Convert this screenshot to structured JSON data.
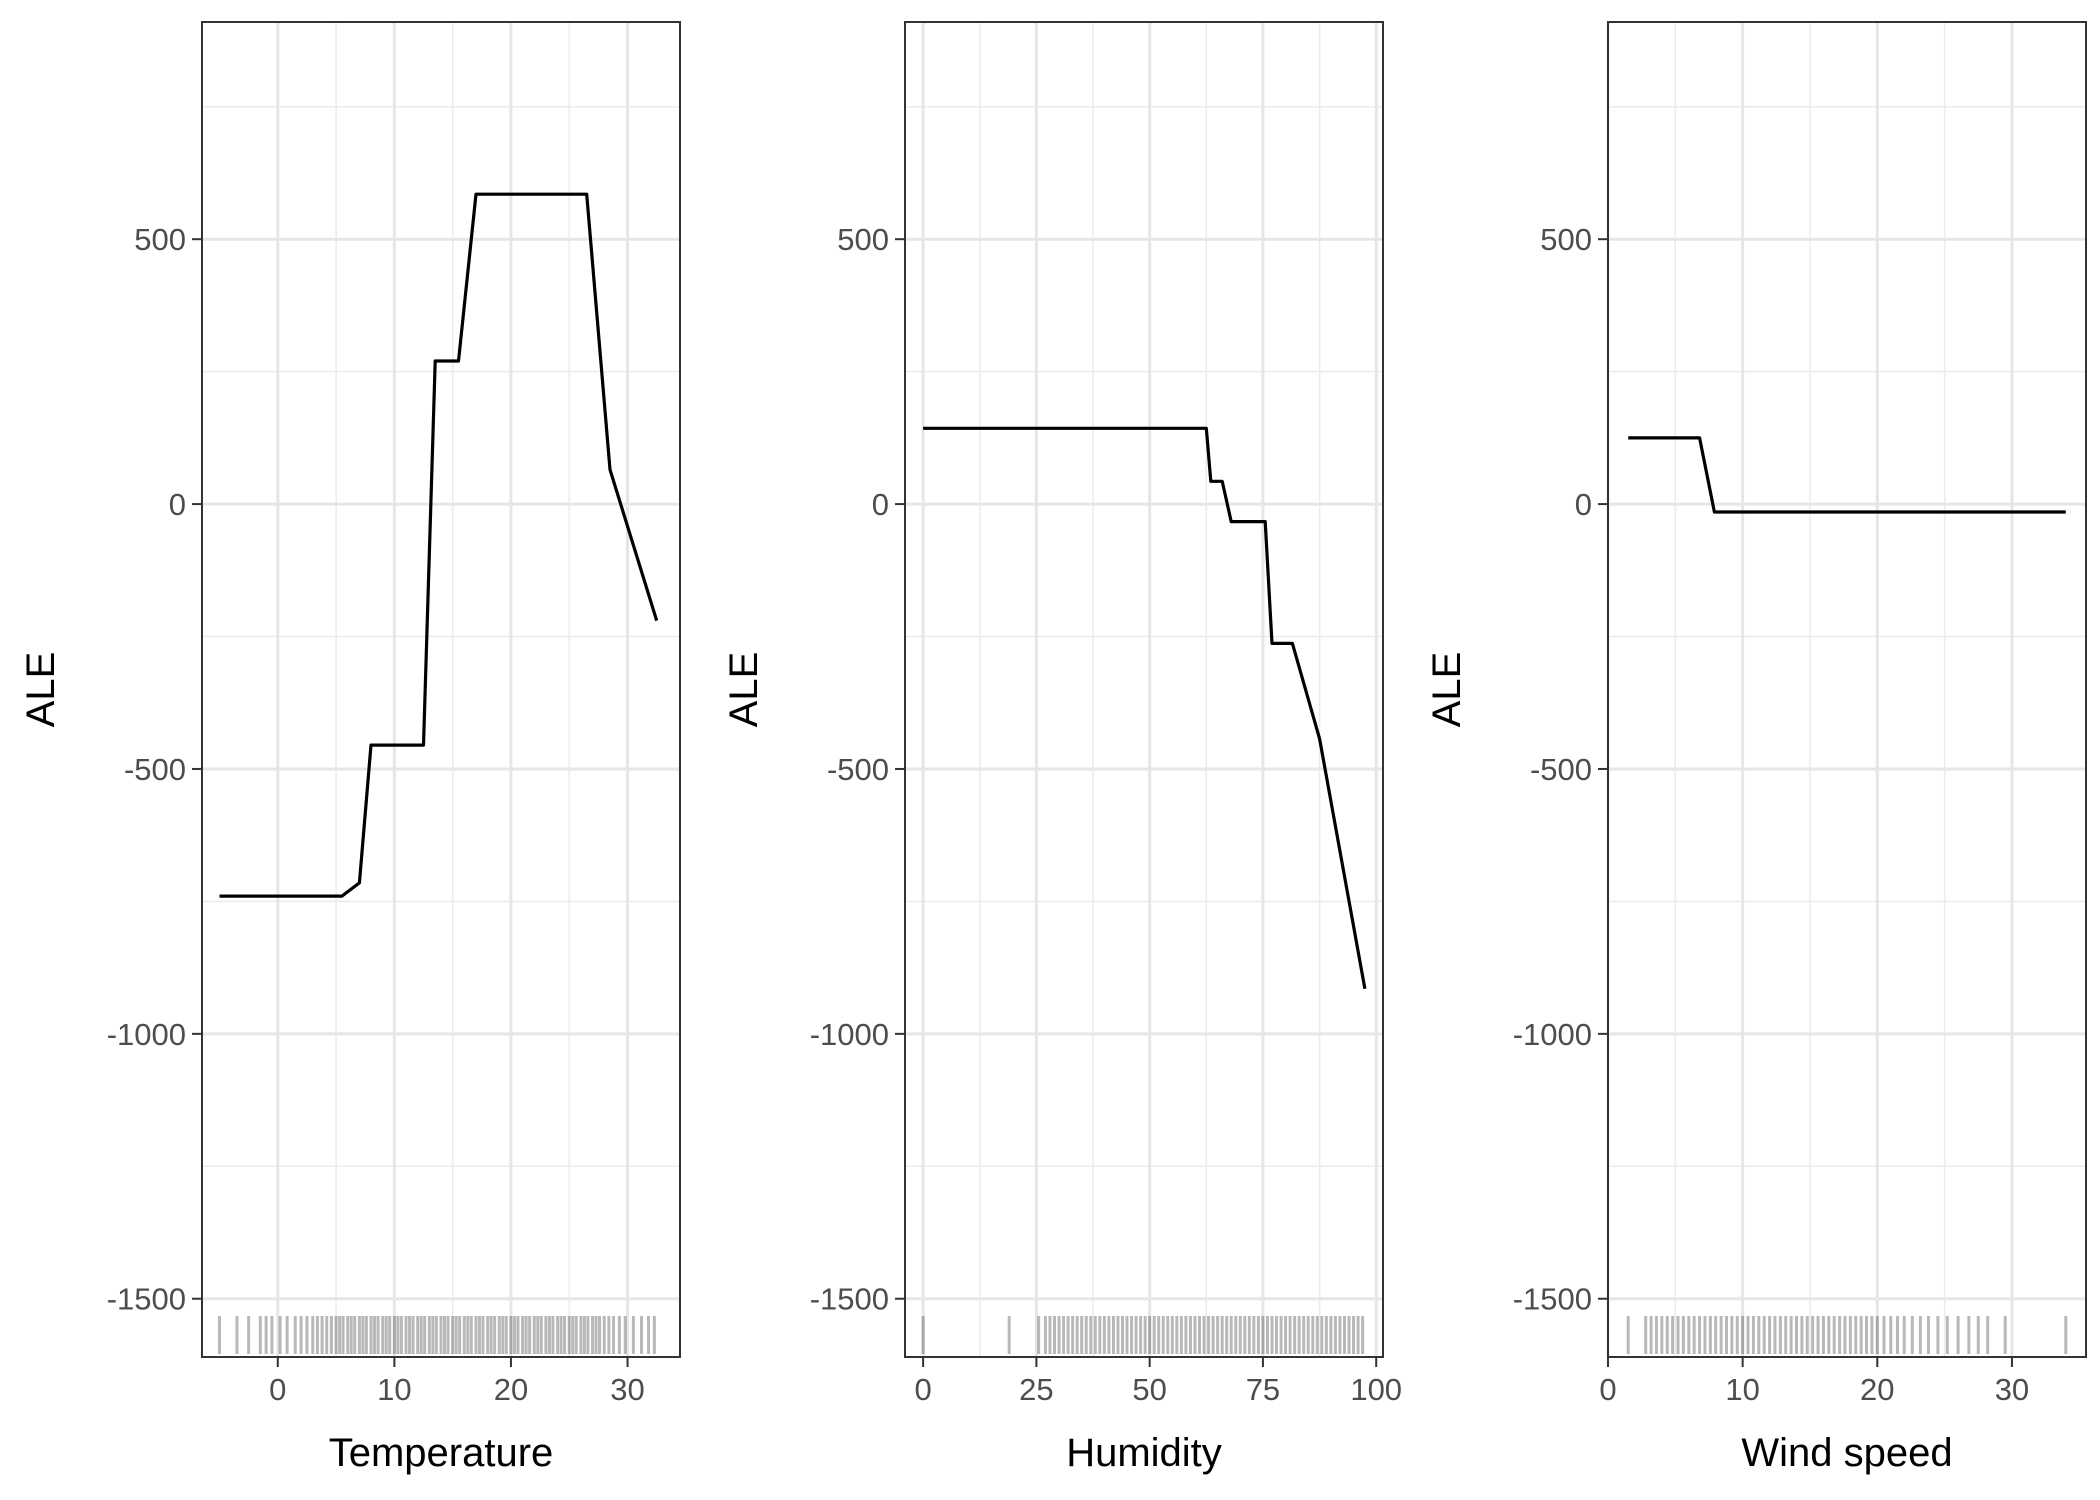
{
  "chart_data": [
    {
      "type": "line",
      "xlabel": "Temperature",
      "ylabel": "ALE",
      "xlim": [
        -6.5,
        34.5
      ],
      "ylim": [
        -1610,
        910
      ],
      "xticks": [
        0,
        10,
        20,
        30
      ],
      "yticks": [
        -1500,
        -1000,
        -500,
        0,
        500
      ],
      "grid": true,
      "x": [
        -5,
        5.5,
        7,
        8,
        12.5,
        13.5,
        15.5,
        17,
        26.5,
        28.5,
        32.5
      ],
      "y": [
        -740,
        -740,
        -715,
        -455,
        -455,
        270,
        270,
        585,
        585,
        65,
        -220
      ],
      "rug": [
        -5,
        -3.5,
        -2.5,
        -1.5,
        -1,
        -0.5,
        0.2,
        0.8,
        1.5,
        2,
        2.5,
        3,
        3.4,
        3.8,
        4.2,
        4.6,
        5,
        5.3,
        5.6,
        6,
        6.3,
        6.6,
        7,
        7.3,
        7.6,
        8,
        8.3,
        8.6,
        9,
        9.3,
        9.6,
        10,
        10.3,
        10.6,
        11,
        11.3,
        11.6,
        12,
        12.3,
        12.6,
        13,
        13.3,
        13.6,
        14,
        14.3,
        14.6,
        15,
        15.3,
        15.6,
        16,
        16.3,
        16.6,
        17,
        17.3,
        17.6,
        18,
        18.3,
        18.6,
        19,
        19.3,
        19.6,
        20,
        20.3,
        20.6,
        21,
        21.3,
        21.6,
        22,
        22.3,
        22.6,
        23,
        23.3,
        23.6,
        24,
        24.3,
        24.6,
        25,
        25.3,
        25.6,
        26,
        26.3,
        26.6,
        27,
        27.3,
        27.6,
        28,
        28.4,
        28.8,
        29.3,
        29.8,
        30.5,
        31.2,
        31.8,
        32.3
      ]
    },
    {
      "type": "line",
      "xlabel": "Humidity",
      "ylabel": "ALE",
      "xlim": [
        -4,
        101.5
      ],
      "ylim": [
        -1610,
        910
      ],
      "xticks": [
        0,
        25,
        50,
        75,
        100
      ],
      "yticks": [
        -1500,
        -1000,
        -500,
        0,
        500
      ],
      "grid": true,
      "x": [
        0,
        62.5,
        63.5,
        65,
        66,
        68,
        75.5,
        77,
        81.5,
        87.5,
        97.5
      ],
      "y": [
        143,
        143,
        43,
        43,
        43,
        -33,
        -33,
        -263,
        -263,
        -443,
        -915
      ],
      "rug": [
        0,
        19,
        25.5,
        27,
        28,
        29,
        30,
        31,
        32,
        33,
        34,
        35,
        36,
        37,
        38,
        39,
        40,
        41,
        42,
        43,
        44,
        45,
        46,
        47,
        48,
        49,
        50,
        51,
        52,
        53,
        54,
        55,
        56,
        57,
        58,
        59,
        60,
        61,
        62,
        63,
        64,
        65,
        66,
        67,
        68,
        69,
        70,
        71,
        72,
        73,
        74,
        75,
        76,
        77,
        78,
        79,
        80,
        81,
        82,
        83,
        84,
        85,
        86,
        87,
        88,
        89,
        90,
        91,
        92,
        93,
        94,
        95,
        96,
        97
      ]
    },
    {
      "type": "line",
      "xlabel": "Wind speed",
      "ylabel": "ALE",
      "xlim": [
        0,
        35.5
      ],
      "ylim": [
        -1610,
        910
      ],
      "xticks": [
        0,
        10,
        20,
        30
      ],
      "yticks": [
        -1500,
        -1000,
        -500,
        0,
        500
      ],
      "grid": true,
      "x": [
        1.5,
        6.8,
        7.9,
        34
      ],
      "y": [
        125,
        125,
        -15,
        -15
      ],
      "rug": [
        1.5,
        2.8,
        3.2,
        3.6,
        4,
        4.4,
        4.8,
        5.2,
        5.6,
        6,
        6.4,
        6.8,
        7.2,
        7.6,
        8,
        8.4,
        8.8,
        9.2,
        9.6,
        10,
        10.4,
        10.8,
        11.2,
        11.6,
        12,
        12.4,
        12.8,
        13.2,
        13.6,
        14,
        14.4,
        14.8,
        15.2,
        15.6,
        16,
        16.4,
        16.8,
        17.2,
        17.6,
        18,
        18.4,
        18.8,
        19.2,
        19.6,
        20,
        20.5,
        21,
        21.5,
        22,
        22.6,
        23.2,
        23.8,
        24.5,
        25.2,
        26,
        26.8,
        27.5,
        28.2,
        29.5,
        34
      ]
    }
  ]
}
